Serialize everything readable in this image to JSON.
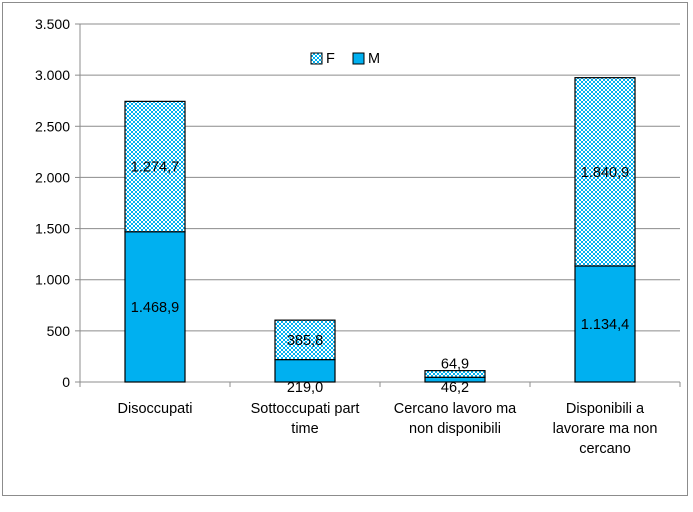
{
  "chart_data": {
    "type": "bar",
    "stacked": true,
    "categories": [
      [
        "Disoccupati"
      ],
      [
        "Sottoccupati part",
        "time"
      ],
      [
        "Cercano lavoro ma",
        "non disponibili"
      ],
      [
        "Disponibili a",
        "lavorare ma non",
        "cercano"
      ]
    ],
    "series": [
      {
        "name": "M",
        "values": [
          1468.9,
          219.0,
          46.2,
          1134.4
        ],
        "labels": [
          "1.468,9",
          "219,0",
          "46,2",
          "1.134,4"
        ],
        "color": "#00b0f0",
        "pattern": "solid"
      },
      {
        "name": "F",
        "values": [
          1274.7,
          385.8,
          64.9,
          1840.9
        ],
        "labels": [
          "1.274,7",
          "385,8",
          "64,9",
          "1.840,9"
        ],
        "color": "#00b0f0",
        "pattern": "dotted"
      }
    ],
    "legend": {
      "position": "top-center",
      "entries": [
        "F",
        "M"
      ]
    },
    "ylim": [
      0,
      3500
    ],
    "yticks": [
      0,
      500,
      1000,
      1500,
      2000,
      2500,
      3000,
      3500
    ],
    "ytick_labels": [
      "0",
      "500",
      "1.000",
      "1.500",
      "2.000",
      "2.500",
      "3.000",
      "3.500"
    ],
    "grid": true,
    "title": "",
    "xlabel": "",
    "ylabel": ""
  }
}
